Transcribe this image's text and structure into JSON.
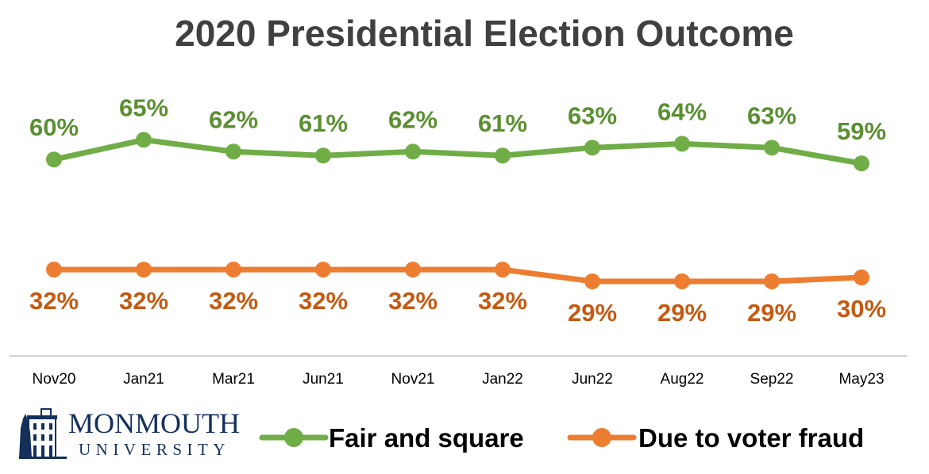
{
  "chart_data": {
    "type": "line",
    "title": "2020 Presidential Election Outcome",
    "categories": [
      "Nov20",
      "Jan21",
      "Mar21",
      "Jun21",
      "Nov21",
      "Jan22",
      "Jun22",
      "Aug22",
      "Sep22",
      "May23"
    ],
    "series": [
      {
        "name": "Fair and square",
        "color": "#70AD47",
        "label_color": "#5B8F32",
        "values": [
          60,
          65,
          62,
          61,
          62,
          61,
          63,
          64,
          63,
          59
        ]
      },
      {
        "name": "Due to voter fraud",
        "color": "#ED7D31",
        "label_color": "#C55A11",
        "values": [
          32,
          32,
          32,
          32,
          32,
          32,
          29,
          29,
          29,
          30
        ]
      }
    ],
    "value_suffix": "%",
    "xlabel": "",
    "ylabel": "",
    "grid": false,
    "legend_position": "bottom-right"
  },
  "logo": {
    "line1": "MONMOUTH",
    "line2": "UNIVERSITY",
    "color": "#14305A"
  }
}
